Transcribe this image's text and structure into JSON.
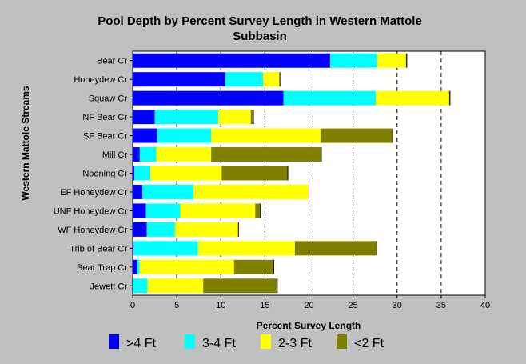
{
  "chart_data": {
    "type": "bar",
    "orientation": "horizontal",
    "stacked": true,
    "title_line1": "Pool Depth by Percent Survey Length in Western Mattole",
    "title_line2": "Subbasin",
    "xlabel": "Percent Survey Length",
    "ylabel": "Western Mattole Streams",
    "xlim": [
      0,
      40
    ],
    "xticks": [
      "0",
      "5",
      "10",
      "15",
      "20",
      "25",
      "30",
      "35",
      "40"
    ],
    "grid": "vertical-dashed",
    "legend_position": "bottom",
    "categories": [
      "Bear Cr",
      "Honeydew Cr",
      "Squaw Cr",
      "NF Bear Cr",
      "SF Bear Cr",
      "Mill Cr",
      "Nooning Cr",
      "EF Honeydew Cr",
      "UNF Honeydew Cr",
      "WF Honeydew Cr",
      "Trib of Bear Cr",
      "Bear Trap Cr",
      "Jewett Cr"
    ],
    "series": [
      {
        "name": ">4 Ft",
        "color": "#0000ff",
        "values": [
          22.4,
          10.5,
          17.1,
          2.5,
          2.8,
          0.8,
          0.2,
          1.1,
          1.5,
          1.6,
          0.1,
          0.5,
          0.0
        ]
      },
      {
        "name": "3-4 Ft",
        "color": "#00ffff",
        "values": [
          5.3,
          4.3,
          10.5,
          7.2,
          6.1,
          1.9,
          1.8,
          5.8,
          3.9,
          3.2,
          7.3,
          0.3,
          1.7
        ]
      },
      {
        "name": "2-3 Ft",
        "color": "#ffff00",
        "values": [
          3.3,
          1.9,
          8.3,
          3.7,
          12.4,
          6.2,
          8.1,
          13.1,
          8.5,
          7.2,
          11.0,
          10.7,
          6.3
        ]
      },
      {
        "name": "<2 Ft",
        "color": "#808000",
        "values": [
          0.1,
          0.0,
          0.1,
          0.3,
          8.2,
          12.5,
          7.5,
          0.0,
          0.6,
          0.0,
          9.3,
          4.5,
          8.4
        ]
      }
    ]
  }
}
